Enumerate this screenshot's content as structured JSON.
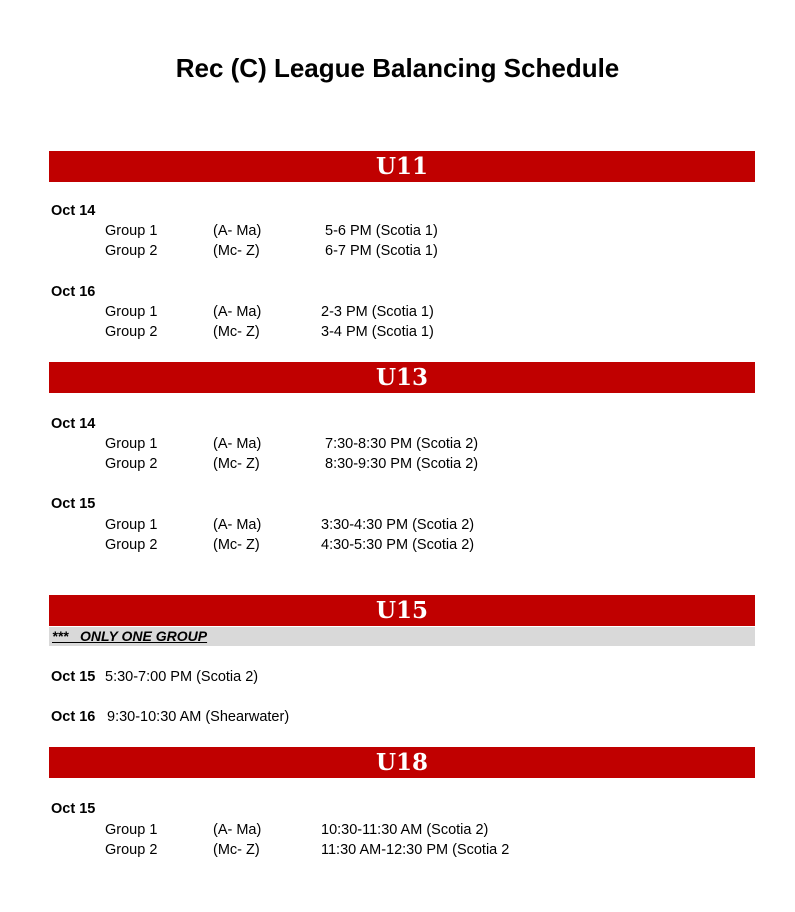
{
  "title": "Rec (C) League Balancing Schedule",
  "sections": {
    "u11": {
      "label": "U11",
      "days": [
        {
          "date": "Oct 14",
          "rows": [
            {
              "group": "Group 1",
              "range": "(A- Ma)",
              "time": "5-6 PM (Scotia 1)"
            },
            {
              "group": "Group 2",
              "range": "(Mc- Z)",
              "time": "6-7 PM (Scotia 1)"
            }
          ]
        },
        {
          "date": "Oct 16",
          "rows": [
            {
              "group": "Group 1",
              "range": "(A- Ma)",
              "time": "2-3 PM (Scotia 1)"
            },
            {
              "group": "Group 2",
              "range": "(Mc- Z)",
              "time": "3-4 PM (Scotia 1)"
            }
          ]
        }
      ]
    },
    "u13": {
      "label": "U13",
      "days": [
        {
          "date": "Oct 14",
          "rows": [
            {
              "group": "Group 1",
              "range": "(A- Ma)",
              "time": "7:30-8:30 PM (Scotia 2)"
            },
            {
              "group": "Group 2",
              "range": "(Mc- Z)",
              "time": "8:30-9:30 PM (Scotia 2)"
            }
          ]
        },
        {
          "date": "Oct 15",
          "rows": [
            {
              "group": "Group 1",
              "range": "(A- Ma)",
              "time": "3:30-4:30 PM (Scotia 2)"
            },
            {
              "group": "Group 2",
              "range": "(Mc- Z)",
              "time": "4:30-5:30 PM (Scotia 2)"
            }
          ]
        }
      ]
    },
    "u15": {
      "label": "U15",
      "note": "***   ONLY ONE GROUP",
      "days": [
        {
          "date": "Oct 15",
          "time": "5:30-7:00 PM (Scotia 2)"
        },
        {
          "date": "Oct 16",
          "time": "9:30-10:30 AM (Shearwater)"
        }
      ]
    },
    "u18": {
      "label": "U18",
      "days": [
        {
          "date": "Oct 15",
          "rows": [
            {
              "group": "Group 1",
              "range": "(A- Ma)",
              "time": "10:30-11:30 AM (Scotia 2)"
            },
            {
              "group": "Group 2",
              "range": "(Mc- Z)",
              "time": "11:30 AM-12:30 PM (Scotia 2"
            }
          ]
        }
      ]
    }
  },
  "colors": {
    "header_bar": "#c00000",
    "note_bg": "#d9d9d9"
  }
}
